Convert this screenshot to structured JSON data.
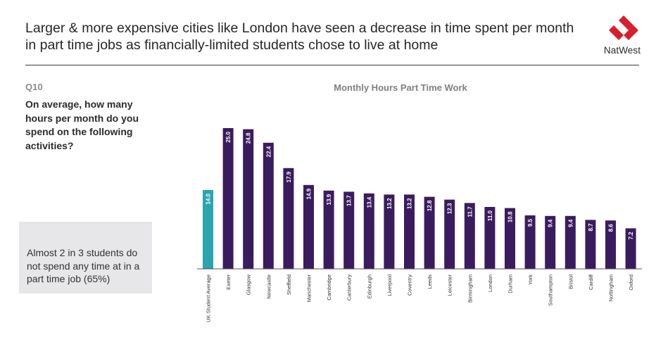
{
  "header": {
    "title_line1": "Larger & more expensive cities like London have seen a decrease in time spent per month",
    "title_line2": "in part time jobs as financially-limited students chose to live at home",
    "brand": "NatWest",
    "logo_icon": "natwest-logo-icon"
  },
  "question": {
    "number": "Q10",
    "text": "On average, how many hours per month do you spend on the following activities?"
  },
  "callout": {
    "text": "Almost 2 in 3 students do not spend any time at in a part time job (65%)"
  },
  "colors": {
    "highlight_bar": "#2aa5ad",
    "bar": "#3a1c5e",
    "axis": "#555555",
    "callout_bg": "#e7e7e9",
    "logo_red": "#d81e2c"
  },
  "chart_data": {
    "type": "bar",
    "title": "Monthly Hours Part Time Work",
    "categories": [
      "UK Student Average",
      "Exeter",
      "Glasgow",
      "Newcastle",
      "Sheffield",
      "Manchester",
      "Cambridge",
      "Canterbury",
      "Edinburgh",
      "Liverpool",
      "Coventry",
      "Leeds",
      "Leicester",
      "Birmingham",
      "London",
      "Durham",
      "York",
      "Southampton",
      "Bristol",
      "Cardiff",
      "Nottingham",
      "Oxford"
    ],
    "values": [
      14.0,
      25.0,
      24.8,
      22.4,
      17.9,
      14.9,
      13.9,
      13.7,
      13.4,
      13.2,
      13.2,
      12.8,
      12.3,
      11.7,
      11.0,
      10.8,
      9.5,
      9.4,
      9.4,
      8.7,
      8.6,
      7.2
    ],
    "data_labels": [
      "14.0",
      "25.0",
      "24.8",
      "22.4",
      "17.9",
      "14.9",
      "13.9",
      "13.7",
      "13.4",
      "13.2",
      "13.2",
      "12.8",
      "12.3",
      "11.7",
      "11.0",
      "10.8",
      "9.5",
      "9.4",
      "9.4",
      "8.7",
      "8.6",
      "7.2"
    ],
    "highlight_index": 0,
    "ylim": [
      0,
      25
    ],
    "grid": false,
    "legend": "none",
    "xlabel": "",
    "ylabel": ""
  }
}
